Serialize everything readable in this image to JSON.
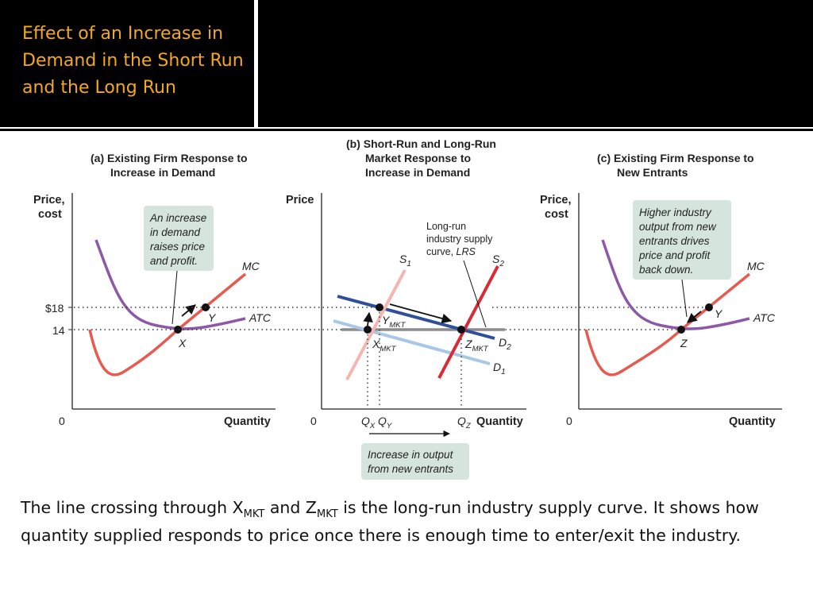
{
  "slide": {
    "title": "Effect of an Increase in Demand in the Short Run and the Long Run",
    "caption": {
      "part1": "The line crossing through X",
      "sub1": "MKT",
      "part2": " and Z",
      "sub2": "MKT",
      "part3": " is the long-run industry supply curve.  It shows how quantity supplied responds to price once there is enough time to enter/exit the industry."
    }
  },
  "colors": {
    "mc": "#e8594f",
    "atc": "#8e58a8",
    "demand_dark": "#2e4f9a",
    "demand_light": "#a9c8e8",
    "supply_pale": "#f3b6b0",
    "supply_red": "#d92a35",
    "lrs": "#8c8c8c",
    "note_bg": "#d6e4de"
  },
  "diagram": {
    "panel_a": {
      "title_line1": "(a) Existing Firm Response to",
      "title_line2": "Increase in Demand",
      "ylabel_line1": "Price,",
      "ylabel_line2": "cost",
      "xlabel": "Quantity",
      "origin": "0",
      "mc_label": "MC",
      "atc_label": "ATC",
      "point_x": "X",
      "point_y": "Y",
      "note_lines": [
        "An increase",
        "in demand",
        "raises price",
        "and profit."
      ]
    },
    "price_ticks": {
      "high": "$18",
      "low": "14"
    },
    "panel_b": {
      "title_line1": "(b) Short-Run and Long-Run",
      "title_line2": "Market Response to",
      "title_line3": "Increase in Demand",
      "ylabel": "Price",
      "xlabel": "Quantity",
      "origin": "0",
      "s1": "S",
      "s1_sub": "1",
      "s2": "S",
      "s2_sub": "2",
      "d1": "D",
      "d1_sub": "1",
      "d2": "D",
      "d2_sub": "2",
      "ymkt": "Y",
      "xmkt": "X",
      "zmkt": "Z",
      "mkt_sub": "MKT",
      "lrs_lines": [
        "Long-run",
        "industry supply"
      ],
      "lrs_last_prefix": "curve, ",
      "lrs_abbrev": "LRS",
      "qx": "Q",
      "qx_sub": "X",
      "qy": "Q",
      "qy_sub": "Y",
      "qz": "Q",
      "qz_sub": "Z",
      "note_lines": [
        "Increase in output",
        "from new entrants"
      ]
    },
    "panel_c": {
      "title_line1": "(c) Existing Firm Response to",
      "title_line2": "New Entrants",
      "ylabel_line1": "Price,",
      "ylabel_line2": "cost",
      "xlabel": "Quantity",
      "origin": "0",
      "mc_label": "MC",
      "atc_label": "ATC",
      "point_z": "Z",
      "point_y": "Y",
      "note_lines": [
        "Higher industry",
        "output from new",
        "entrants drives",
        "price and profit",
        "back down."
      ]
    }
  }
}
